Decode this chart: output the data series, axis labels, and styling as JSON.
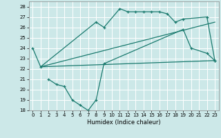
{
  "bg_color": "#cce8e8",
  "line_color": "#1a7a6e",
  "grid_color": "#ffffff",
  "xlim": [
    -0.5,
    23.5
  ],
  "ylim": [
    18,
    28.5
  ],
  "xticks": [
    0,
    1,
    2,
    3,
    4,
    5,
    6,
    7,
    8,
    9,
    10,
    11,
    12,
    13,
    14,
    15,
    16,
    17,
    18,
    19,
    20,
    21,
    22,
    23
  ],
  "yticks": [
    18,
    19,
    20,
    21,
    22,
    23,
    24,
    25,
    26,
    27,
    28
  ],
  "xlabel": "Humidex (Indice chaleur)",
  "series1_x": [
    0,
    1,
    8,
    9,
    11,
    12,
    13,
    14,
    15,
    16,
    17,
    18,
    19,
    22,
    23
  ],
  "series1_y": [
    24,
    22.2,
    26.5,
    26.0,
    27.8,
    27.5,
    27.5,
    27.5,
    27.5,
    27.5,
    27.3,
    26.5,
    26.8,
    27.0,
    22.8
  ],
  "series2_x": [
    2,
    3,
    4,
    5,
    6,
    7,
    8,
    9,
    19,
    20,
    22,
    23
  ],
  "series2_y": [
    21.0,
    20.5,
    20.3,
    19.0,
    18.5,
    18.0,
    19.0,
    22.5,
    25.8,
    24.0,
    23.5,
    22.8
  ],
  "trend1_x": [
    1,
    23
  ],
  "trend1_y": [
    22.2,
    22.8
  ],
  "trend2_x": [
    1,
    23
  ],
  "trend2_y": [
    22.2,
    26.5
  ]
}
